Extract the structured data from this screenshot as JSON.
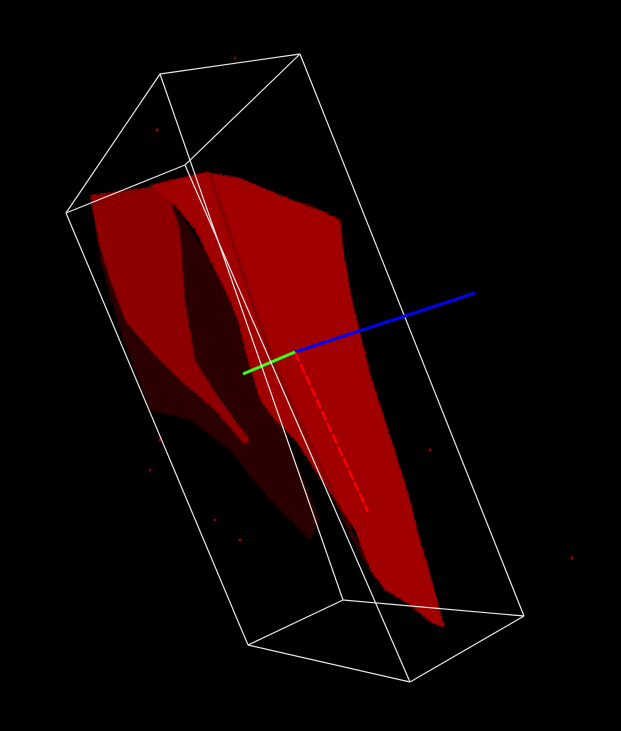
{
  "viewer": {
    "background_color": "#000000",
    "bounding_box_color": "#e8e8e8",
    "point_cloud_color": "#a00000",
    "shadow_point_color": "#2a0000",
    "axes": {
      "x_color": "#ff0000",
      "y_color": "#39ff14",
      "z_color": "#0000ff"
    }
  }
}
